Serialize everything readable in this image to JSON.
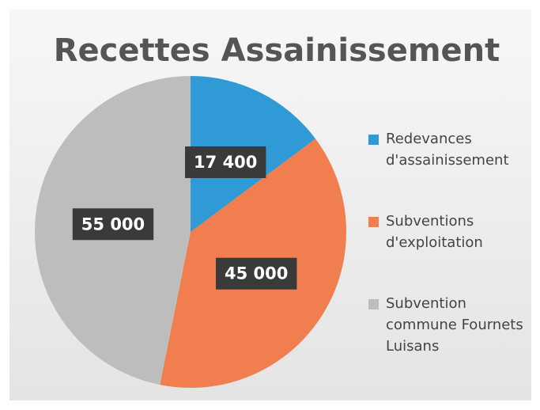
{
  "chart_data": {
    "type": "pie",
    "title": "Recettes Assainissement",
    "categories": [
      "Redevances d'assainissement",
      "Subventions d'exploitation",
      "Subvention commune Fournets Luisans"
    ],
    "values": [
      17400,
      45000,
      55000
    ],
    "value_labels": [
      "17 400",
      "45 000",
      "55 000"
    ],
    "colors": [
      "#2f9ad6",
      "#f07e4e",
      "#bdbdbd"
    ],
    "legend": "right"
  }
}
